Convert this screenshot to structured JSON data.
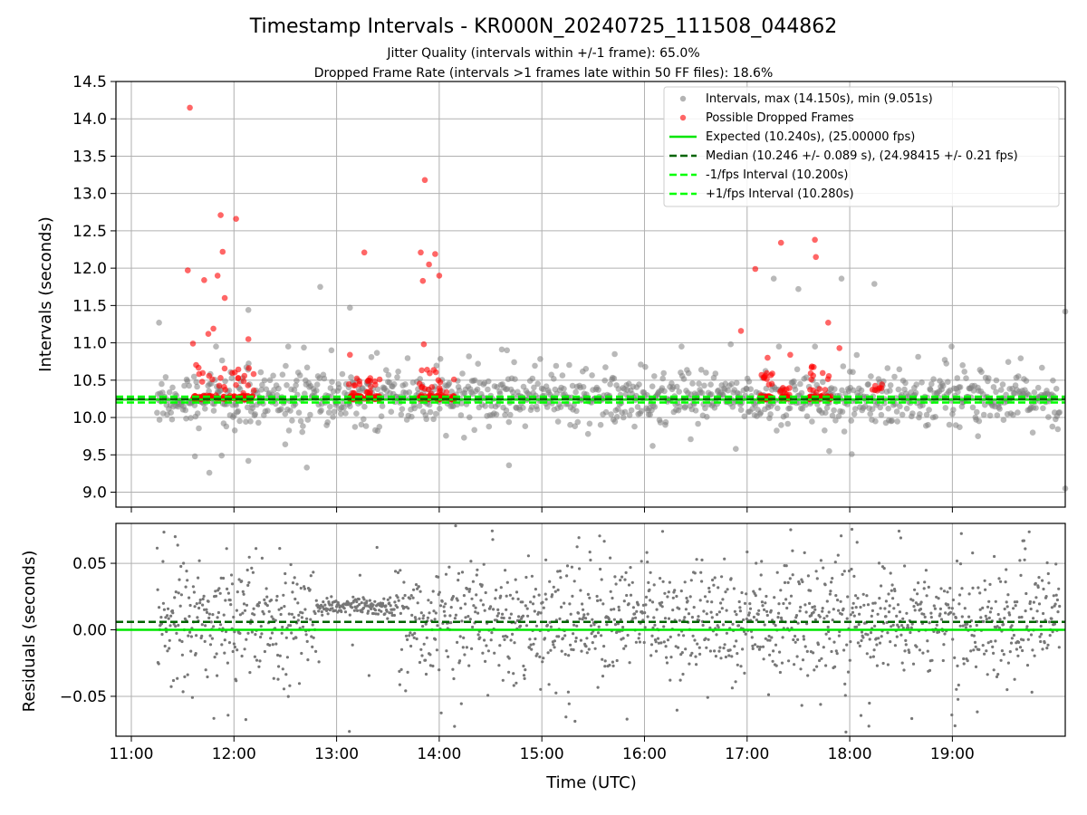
{
  "figure": {
    "title": "Timestamp Intervals - KR000N_20240725_111508_044862",
    "subtitle_1": "Jitter Quality (intervals within +/-1 frame): 65.0%",
    "subtitle_2": "Dropped Frame Rate (intervals >1 frames late within 50 FF files): 18.6%"
  },
  "chart_data": [
    {
      "type": "scatter",
      "ylabel": "Intervals (seconds)",
      "xlim": [
        10.85,
        20.1
      ],
      "ylim": [
        8.8,
        14.5
      ],
      "grid": true,
      "legend_placement": "top-right",
      "yticks": [
        "9.0",
        "9.5",
        "10.0",
        "10.5",
        "11.0",
        "11.5",
        "12.0",
        "12.5",
        "13.0",
        "13.5",
        "14.0",
        "14.5"
      ],
      "ytick_values": [
        9.0,
        9.5,
        10.0,
        10.5,
        11.0,
        11.5,
        12.0,
        12.5,
        13.0,
        13.5,
        14.0,
        14.5
      ],
      "xtick_values": [
        11,
        12,
        13,
        14,
        15,
        16,
        17,
        18,
        19
      ],
      "colors": {
        "intervals": "#808080",
        "dropped": "#ff0000",
        "expected": "#00e600",
        "median": "#006400",
        "bound": "#00ff00"
      },
      "lines": {
        "expected": 10.24,
        "median": 10.246,
        "minus": 10.2,
        "plus": 10.28
      },
      "legend": [
        "Intervals, max (14.150s), min (9.051s)",
        "Possible Dropped Frames",
        "Expected (10.240s), (25.00000 fps)",
        "Median (10.246 +/- 0.089 s), (24.98415 +/- 0.21 fps)",
        "-1/fps Interval (10.200s)",
        "+1/fps Interval (10.280s)"
      ],
      "outliers_gray": [
        [
          11.27,
          11.27
        ],
        [
          11.62,
          9.48
        ],
        [
          11.76,
          9.26
        ],
        [
          11.88,
          9.49
        ],
        [
          12.14,
          11.44
        ],
        [
          12.14,
          9.42
        ],
        [
          12.71,
          9.33
        ],
        [
          12.84,
          11.75
        ],
        [
          13.13,
          11.47
        ],
        [
          14.68,
          9.36
        ],
        [
          15.71,
          10.85
        ],
        [
          16.08,
          9.62
        ],
        [
          16.84,
          10.98
        ],
        [
          16.89,
          9.58
        ],
        [
          17.26,
          11.86
        ],
        [
          17.5,
          11.72
        ],
        [
          17.8,
          9.55
        ],
        [
          17.92,
          11.86
        ],
        [
          18.02,
          9.51
        ],
        [
          18.24,
          11.79
        ],
        [
          20.1,
          11.42
        ],
        [
          20.1,
          9.05
        ],
        [
          12.95,
          10.9
        ],
        [
          14.66,
          10.9
        ],
        [
          19.25,
          9.75
        ],
        [
          19.1,
          10.7
        ],
        [
          15.45,
          9.78
        ],
        [
          13.4,
          9.82
        ],
        [
          12.5,
          9.64
        ],
        [
          16.45,
          9.71
        ]
      ],
      "dropped_outliers": [
        [
          11.57,
          14.15
        ],
        [
          11.55,
          11.97
        ],
        [
          11.71,
          11.84
        ],
        [
          11.84,
          11.9
        ],
        [
          11.87,
          12.71
        ],
        [
          11.89,
          12.22
        ],
        [
          11.91,
          11.6
        ],
        [
          12.02,
          12.66
        ],
        [
          13.27,
          12.21
        ],
        [
          13.86,
          13.18
        ],
        [
          13.82,
          12.21
        ],
        [
          13.96,
          12.19
        ],
        [
          13.9,
          12.05
        ],
        [
          13.84,
          11.83
        ],
        [
          14.0,
          11.9
        ],
        [
          17.08,
          11.99
        ],
        [
          17.33,
          12.34
        ],
        [
          17.66,
          12.38
        ],
        [
          17.67,
          12.15
        ],
        [
          17.79,
          11.27
        ],
        [
          11.6,
          10.99
        ],
        [
          11.75,
          11.12
        ],
        [
          11.8,
          11.19
        ],
        [
          12.14,
          11.05
        ],
        [
          13.13,
          10.84
        ],
        [
          13.85,
          10.98
        ],
        [
          16.94,
          11.16
        ],
        [
          17.9,
          10.93
        ],
        [
          17.2,
          10.8
        ],
        [
          17.42,
          10.84
        ]
      ],
      "clusters_red": [
        [
          11.6,
          12.2,
          110,
          10.24,
          10.72
        ],
        [
          13.12,
          13.42,
          80,
          10.24,
          10.55
        ],
        [
          13.8,
          14.15,
          80,
          10.24,
          10.65
        ],
        [
          17.12,
          17.25,
          40,
          10.24,
          10.6
        ],
        [
          17.32,
          17.42,
          25,
          10.24,
          10.4
        ],
        [
          17.6,
          17.82,
          45,
          10.24,
          10.7
        ],
        [
          18.22,
          18.32,
          8,
          10.35,
          10.47
        ]
      ]
    },
    {
      "type": "scatter",
      "xlabel": "Time (UTC)",
      "ylabel": "Residuals (seconds)",
      "xlim": [
        10.85,
        20.1
      ],
      "ylim": [
        -0.08,
        0.08
      ],
      "grid": true,
      "yticks": [
        "0.05",
        "0.00",
        "−0.05"
      ],
      "ytick_values": [
        0.05,
        0.0,
        -0.05
      ],
      "xticks": [
        "11:00",
        "12:00",
        "13:00",
        "14:00",
        "15:00",
        "16:00",
        "17:00",
        "18:00",
        "19:00"
      ],
      "xtick_values": [
        11,
        12,
        13,
        14,
        15,
        16,
        17,
        18,
        19
      ],
      "lines": {
        "expected": 0.0,
        "median": 0.006
      }
    }
  ]
}
